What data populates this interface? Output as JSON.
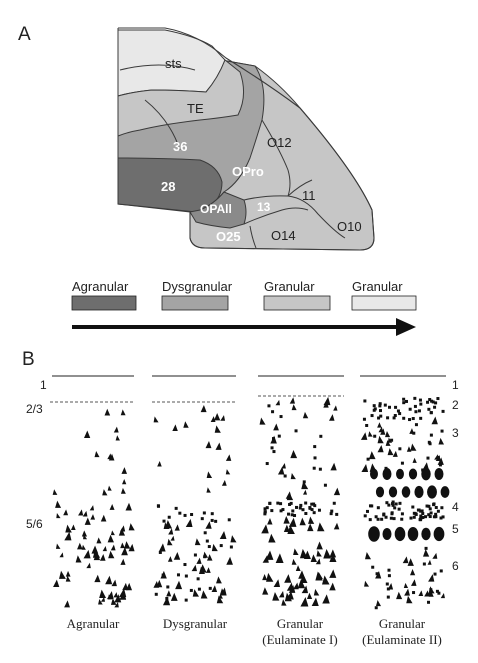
{
  "panel_a": {
    "letter": "A",
    "regions": {
      "sts": "sts",
      "te": "TE",
      "a36": "36",
      "o12": "O12",
      "a28": "28",
      "opro": "OPro",
      "a11": "11",
      "opall": "OPAll",
      "a13": "13",
      "o10": "O10",
      "o25": "O25",
      "o14": "O14"
    },
    "colors": {
      "agranular": "#6e6e6e",
      "dysgranular": "#a4a4a4",
      "granular": "#c6c6c6",
      "granular_light": "#e8e8e8",
      "outline": "#3a3a3a"
    },
    "legend": [
      {
        "label": "Agranular",
        "color": "#6e6e6e"
      },
      {
        "label": "Dysgranular",
        "color": "#a4a4a4"
      },
      {
        "label": "Granular",
        "color": "#c6c6c6"
      },
      {
        "label": "Granular",
        "color": "#e8e8e8"
      }
    ]
  },
  "panel_b": {
    "letter": "B",
    "layers_left": [
      "1",
      "2/3",
      "5/6"
    ],
    "layers_right": [
      "1",
      "2",
      "3",
      "4",
      "5",
      "6"
    ],
    "columns": [
      {
        "title": "Agranular",
        "subtitle": ""
      },
      {
        "title": "Dysgranular",
        "subtitle": ""
      },
      {
        "title": "Granular",
        "subtitle": "(Eulaminate I)"
      },
      {
        "title": "Granular",
        "subtitle": "(Eulaminate II)"
      }
    ]
  }
}
